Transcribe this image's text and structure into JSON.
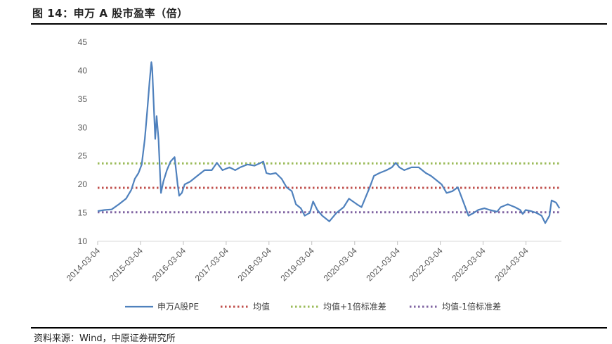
{
  "header": {
    "title": "图 14：申万 A 股市盈率（倍）"
  },
  "footer": {
    "source": "资料来源：Wind，中原证券研究所"
  },
  "chart_data": {
    "type": "line",
    "title": "",
    "xlabel": "",
    "ylabel": "",
    "ylim": [
      10,
      45
    ],
    "yticks": [
      "10",
      "15",
      "20",
      "25",
      "30",
      "35",
      "40",
      "45"
    ],
    "xticks": [
      "2014-03-04",
      "2015-03-04",
      "2016-03-04",
      "2017-03-04",
      "2018-03-04",
      "2019-03-04",
      "2020-03-04",
      "2021-03-04",
      "2022-03-04",
      "2023-03-04",
      "2024-03-04"
    ],
    "legend_position": "bottom",
    "series": [
      {
        "name": "申万A股PE",
        "color": "#4F81BD",
        "style": "solid",
        "x": [
          "2014-03-04",
          "2014-05-01",
          "2014-07-01",
          "2014-09-01",
          "2014-11-01",
          "2014-12-15",
          "2015-01-15",
          "2015-02-15",
          "2015-03-15",
          "2015-04-10",
          "2015-05-01",
          "2015-05-20",
          "2015-06-05",
          "2015-06-12",
          "2015-06-25",
          "2015-07-08",
          "2015-07-20",
          "2015-08-05",
          "2015-08-20",
          "2015-08-26",
          "2015-09-15",
          "2015-10-15",
          "2015-11-15",
          "2015-12-20",
          "2016-01-15",
          "2016-01-28",
          "2016-02-20",
          "2016-03-15",
          "2016-05-01",
          "2016-07-01",
          "2016-09-01",
          "2016-11-01",
          "2016-12-15",
          "2017-02-01",
          "2017-04-01",
          "2017-05-20",
          "2017-07-01",
          "2017-09-01",
          "2017-11-01",
          "2018-01-15",
          "2018-02-10",
          "2018-03-15",
          "2018-05-01",
          "2018-06-20",
          "2018-08-01",
          "2018-09-15",
          "2018-10-20",
          "2018-12-01",
          "2019-01-03",
          "2019-02-15",
          "2019-03-15",
          "2019-04-20",
          "2019-06-01",
          "2019-08-01",
          "2019-10-01",
          "2019-12-01",
          "2020-01-15",
          "2020-03-23",
          "2020-05-01",
          "2020-07-10",
          "2020-08-15",
          "2020-10-01",
          "2020-12-01",
          "2021-01-15",
          "2021-02-18",
          "2021-03-20",
          "2021-05-01",
          "2021-07-01",
          "2021-09-01",
          "2021-11-01",
          "2021-12-15",
          "2022-01-15",
          "2022-03-15",
          "2022-04-27",
          "2022-06-15",
          "2022-08-01",
          "2022-09-15",
          "2022-10-31",
          "2022-12-15",
          "2023-01-20",
          "2023-03-15",
          "2023-05-01",
          "2023-07-01",
          "2023-08-01",
          "2023-10-01",
          "2023-12-01",
          "2024-01-15",
          "2024-02-05",
          "2024-03-01",
          "2024-04-15",
          "2024-06-01",
          "2024-07-15",
          "2024-08-15",
          "2024-09-20",
          "2024-10-08",
          "2024-11-15",
          "2024-12-15"
        ],
        "values": [
          15.3,
          15.5,
          15.6,
          16.5,
          17.5,
          19.0,
          21.0,
          22.0,
          23.5,
          28.0,
          33.0,
          38.0,
          41.5,
          40.5,
          34.0,
          28.0,
          32.0,
          28.0,
          21.0,
          18.5,
          20.5,
          22.5,
          24.0,
          24.8,
          20.0,
          18.0,
          18.5,
          20.0,
          20.5,
          21.5,
          22.5,
          22.5,
          23.8,
          22.5,
          23.0,
          22.5,
          23.0,
          23.5,
          23.3,
          24.0,
          22.0,
          21.8,
          22.0,
          21.0,
          19.5,
          18.8,
          16.5,
          15.8,
          14.5,
          15.0,
          17.0,
          15.5,
          14.5,
          13.5,
          15.0,
          16.0,
          17.5,
          16.5,
          16.0,
          19.5,
          21.5,
          22.0,
          22.5,
          23.0,
          23.8,
          23.0,
          22.5,
          23.0,
          23.0,
          22.0,
          21.5,
          21.0,
          20.0,
          18.5,
          18.8,
          19.5,
          17.0,
          14.5,
          15.0,
          15.5,
          15.8,
          15.5,
          15.2,
          16.0,
          16.5,
          16.0,
          15.5,
          14.8,
          15.5,
          15.3,
          15.0,
          14.5,
          13.2,
          14.5,
          17.2,
          16.8,
          15.8
        ]
      },
      {
        "name": "均值",
        "color": "#C0504D",
        "style": "dotted",
        "value": 19.4
      },
      {
        "name": "均值+1倍标准差",
        "color": "#9BBB59",
        "style": "dotted",
        "value": 23.7
      },
      {
        "name": "均值-1倍标准差",
        "color": "#8064A2",
        "style": "dotted",
        "value": 15.1
      }
    ]
  }
}
